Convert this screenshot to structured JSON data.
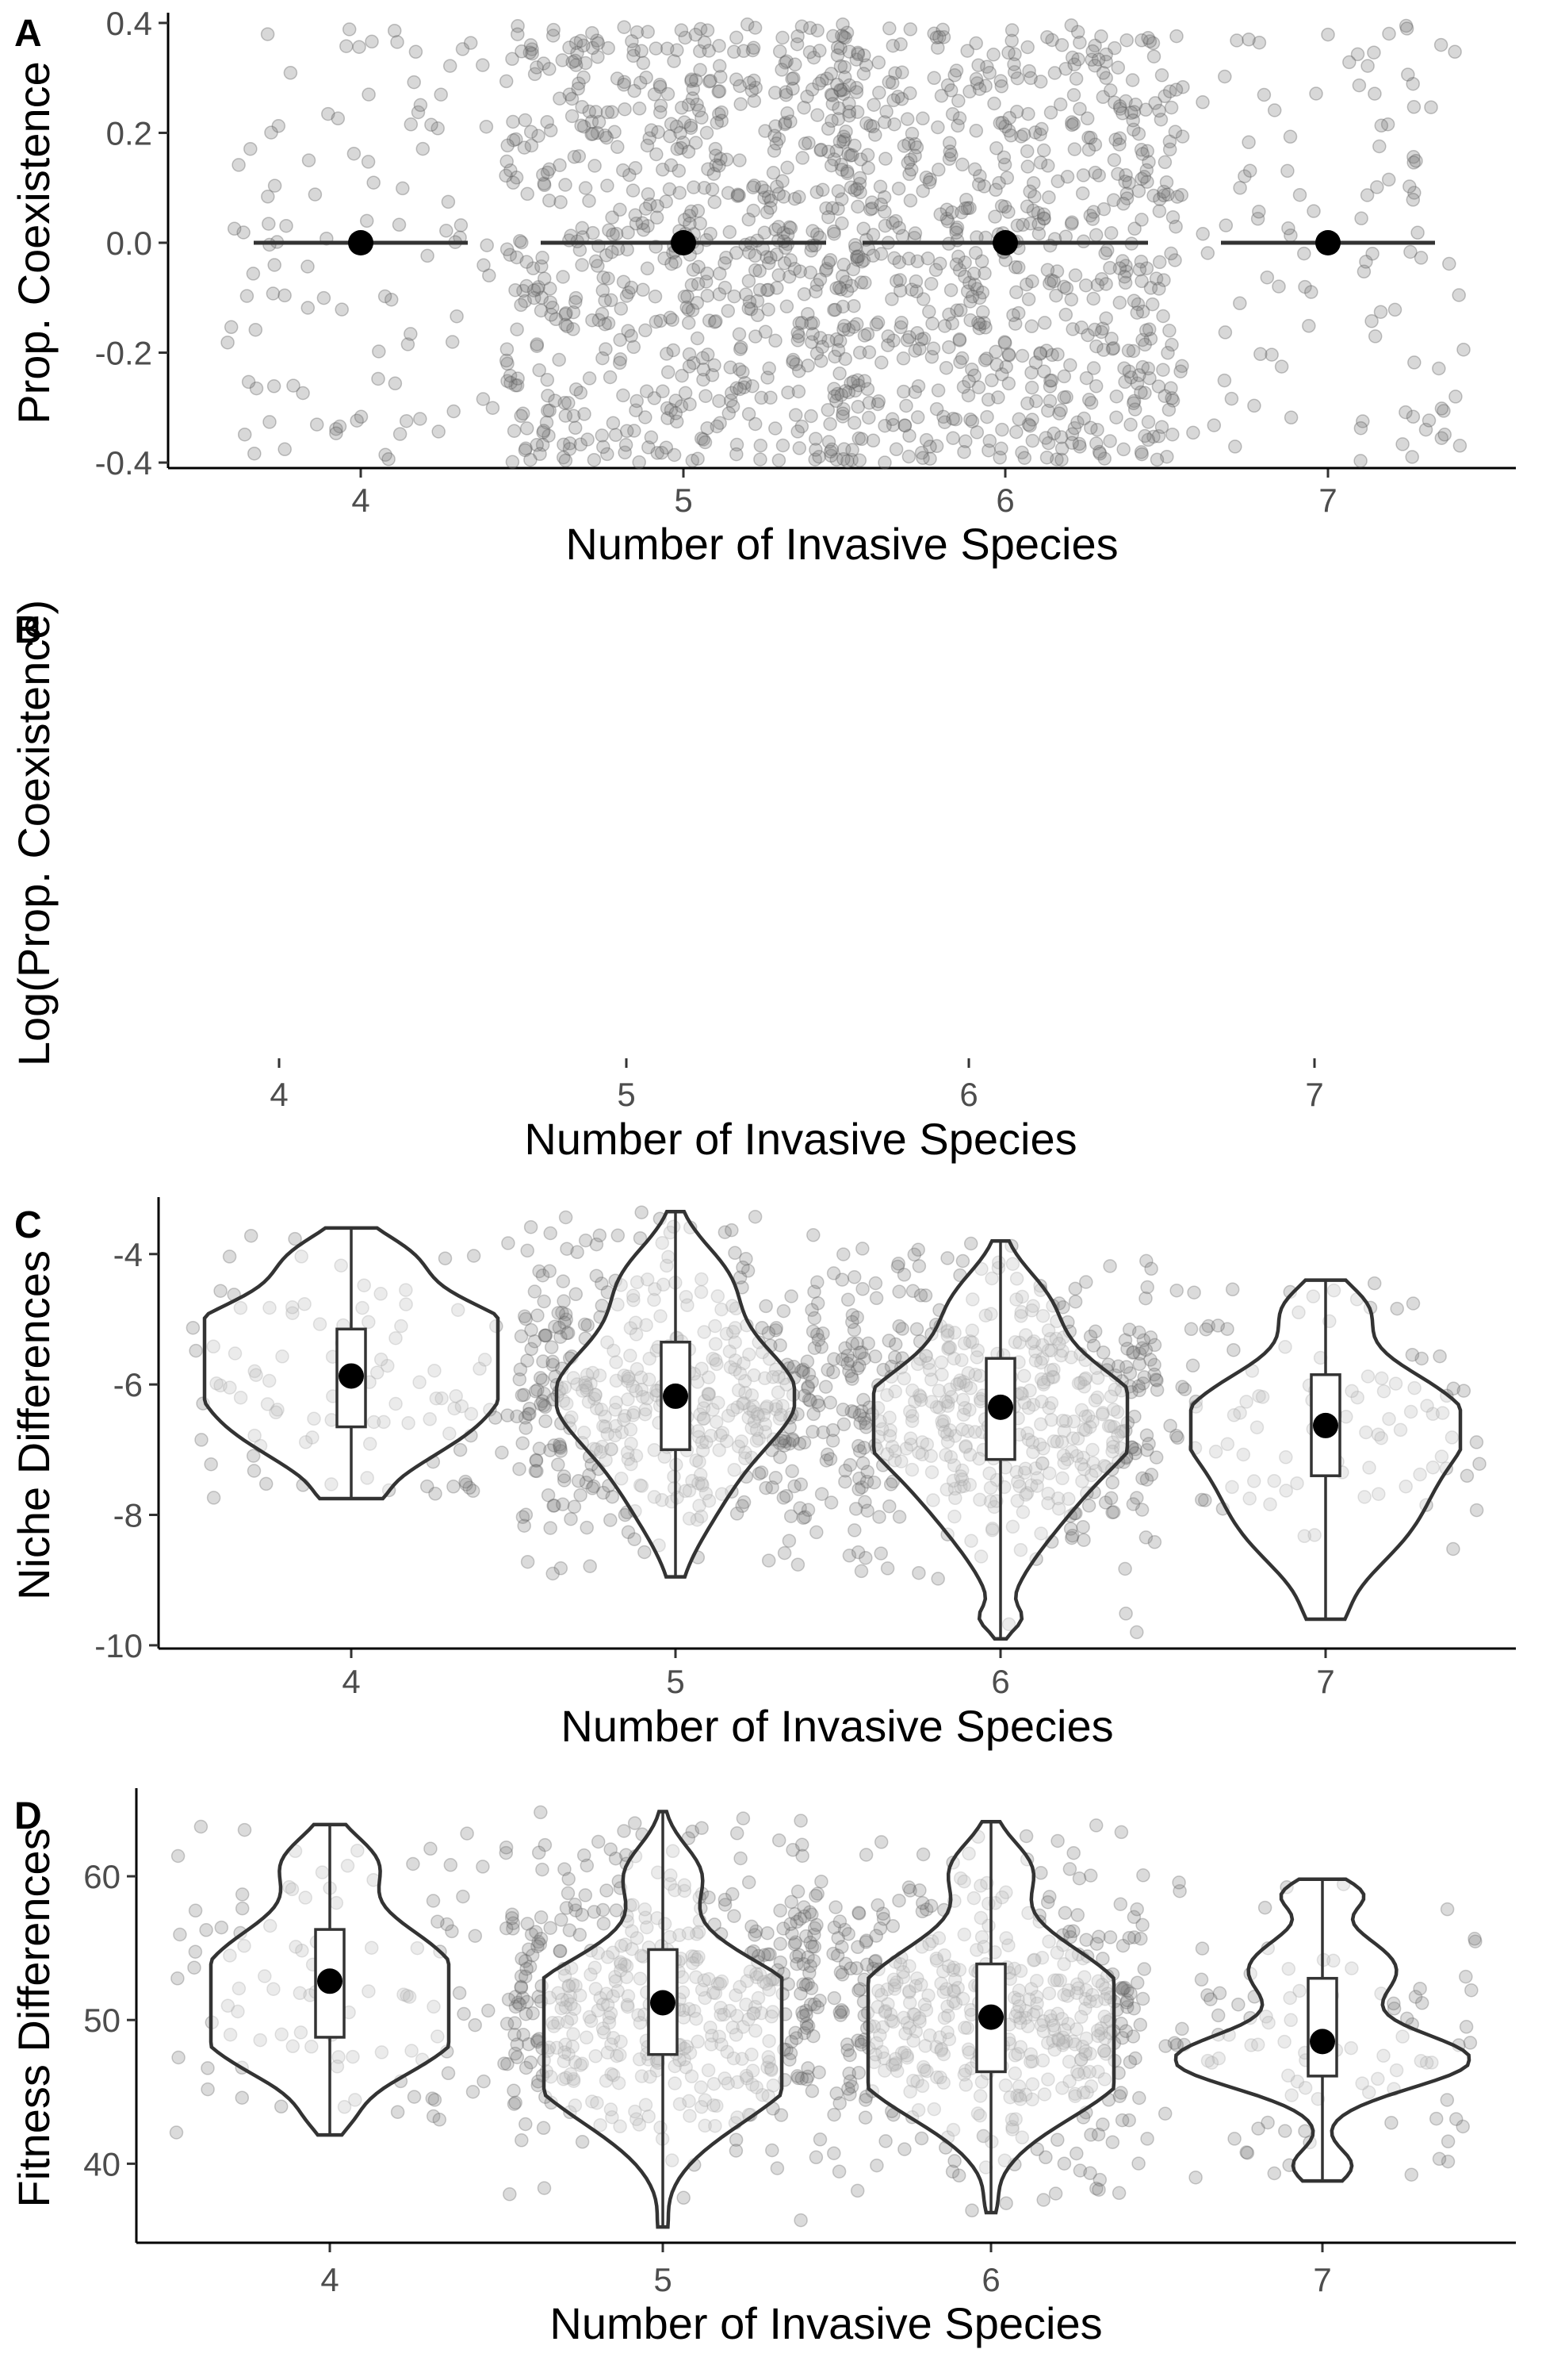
{
  "chart_data": [
    {
      "panel": "A",
      "type": "scatter",
      "xlabel": "Number of Invasive Species",
      "ylabel": "Prop. Coexistence",
      "categories": [
        "4",
        "5",
        "6",
        "7"
      ],
      "yticks": [
        "-0.4",
        "-0.2",
        "0.0",
        "0.2",
        "0.4"
      ],
      "ylim": [
        -0.41,
        0.41
      ],
      "groups": [
        {
          "category": "4",
          "n": 100,
          "mean": 0.0
        },
        {
          "category": "5",
          "n": 700,
          "mean": 0.0
        },
        {
          "category": "6",
          "n": 700,
          "mean": 0.0
        },
        {
          "category": "7",
          "n": 100,
          "mean": 0.0
        }
      ],
      "grid": false
    },
    {
      "panel": "B",
      "type": "scatter",
      "xlabel": "Number of Invasive Species",
      "ylabel": "Log(Prop. Coexistence)",
      "categories": [
        "4",
        "5",
        "6",
        "7"
      ],
      "yticks": [],
      "groups": [],
      "grid": false
    },
    {
      "panel": "C",
      "type": "violin",
      "xlabel": "Number of Invasive Species",
      "ylabel": "Niche Differences",
      "categories": [
        "4",
        "5",
        "6",
        "7"
      ],
      "yticks": [
        "-10",
        "-8",
        "-6",
        "-4"
      ],
      "ylim": [
        -10.05,
        -3.2
      ],
      "groups": [
        {
          "category": "4",
          "n": 100,
          "min": -7.75,
          "max": -3.6,
          "q1": -6.65,
          "median": -5.9,
          "q3": -5.15,
          "mean": -5.87
        },
        {
          "category": "5",
          "n": 500,
          "min": -8.95,
          "max": -3.35,
          "q1": -7.0,
          "median": -6.2,
          "q3": -5.35,
          "mean": -6.18
        },
        {
          "category": "6",
          "n": 500,
          "min": -9.9,
          "max": -3.8,
          "q1": -7.15,
          "median": -6.35,
          "q3": -5.6,
          "mean": -6.35
        },
        {
          "category": "7",
          "n": 100,
          "min": -9.6,
          "max": -4.4,
          "q1": -7.4,
          "median": -6.6,
          "q3": -5.85,
          "mean": -6.63
        }
      ],
      "grid": false
    },
    {
      "panel": "D",
      "type": "violin",
      "xlabel": "Number of Invasive Species",
      "ylabel": "Fitness Differences",
      "categories": [
        "4",
        "5",
        "6",
        "7"
      ],
      "yticks": [
        "40",
        "50",
        "60"
      ],
      "ylim": [
        34.5,
        65.8
      ],
      "groups": [
        {
          "category": "4",
          "n": 100,
          "min": 42.0,
          "max": 63.6,
          "q1": 48.8,
          "median": 52.6,
          "q3": 56.3,
          "mean": 52.7
        },
        {
          "category": "5",
          "n": 500,
          "min": 35.6,
          "max": 64.5,
          "q1": 47.6,
          "median": 51.0,
          "q3": 54.9,
          "mean": 51.2
        },
        {
          "category": "6",
          "n": 500,
          "min": 36.6,
          "max": 63.8,
          "q1": 46.4,
          "median": 50.0,
          "q3": 53.9,
          "mean": 50.2
        },
        {
          "category": "7",
          "n": 100,
          "min": 38.8,
          "max": 59.8,
          "q1": 46.1,
          "median": 48.5,
          "q3": 52.9,
          "mean": 48.5
        }
      ],
      "grid": false
    }
  ]
}
